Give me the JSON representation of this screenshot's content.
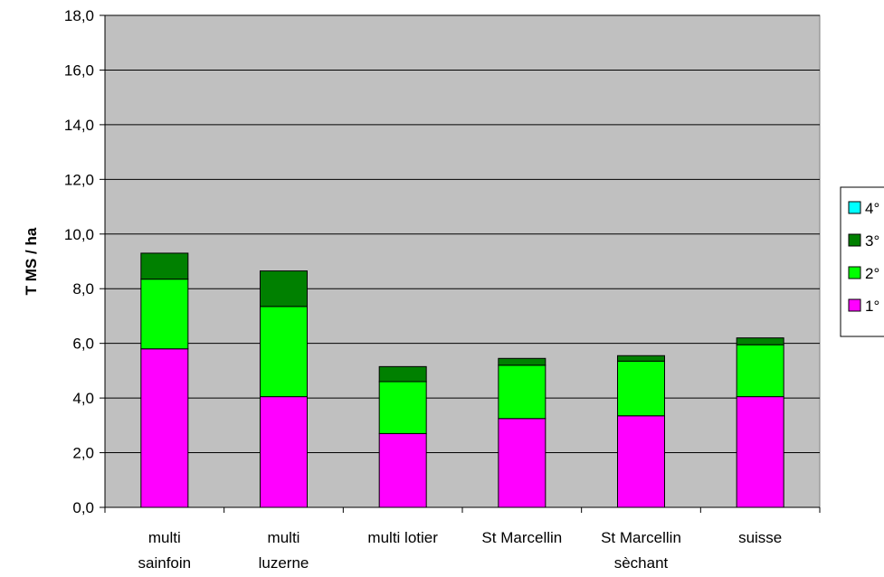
{
  "chart_data": {
    "type": "bar",
    "stacked": true,
    "title": "",
    "ylabel": "T MS / ha",
    "xlabel": "",
    "ylim": [
      0,
      18
    ],
    "y_tick_step": 2,
    "y_tick_labels": [
      "0,0",
      "2,0",
      "4,0",
      "6,0",
      "8,0",
      "10,0",
      "12,0",
      "14,0",
      "16,0",
      "18,0"
    ],
    "grid": true,
    "plot_background": "#c0c0c0",
    "legend_position": "right",
    "categories": [
      [
        "multi",
        "sainfoin"
      ],
      [
        "multi",
        "luzerne"
      ],
      [
        "multi lotier"
      ],
      [
        "St Marcellin"
      ],
      [
        "St Marcellin",
        "sèchant"
      ],
      [
        "suisse"
      ]
    ],
    "series": [
      {
        "name": "1°",
        "color": "#ff00ff",
        "values": [
          5.8,
          4.05,
          2.7,
          3.25,
          3.35,
          4.05
        ]
      },
      {
        "name": "2°",
        "color": "#00ff00",
        "values": [
          2.55,
          3.3,
          1.9,
          1.95,
          2.0,
          1.9
        ]
      },
      {
        "name": "3°",
        "color": "#008000",
        "values": [
          0.95,
          1.3,
          0.55,
          0.25,
          0.2,
          0.25
        ]
      },
      {
        "name": "4°",
        "color": "#00ffff",
        "values": [
          0,
          0,
          0,
          0,
          0,
          0
        ]
      }
    ],
    "legend_order": [
      "4°",
      "3°",
      "2°",
      "1°"
    ]
  }
}
